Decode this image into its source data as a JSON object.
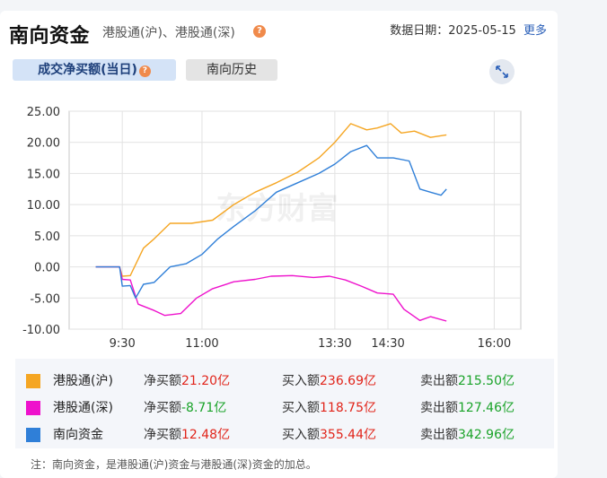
{
  "header": {
    "title": "南向资金",
    "subtitle": "港股通(沪)、港股通(深)",
    "help": "?",
    "date_label": "数据日期：",
    "date_value": "2025-05-15",
    "more": "更多"
  },
  "tabs": [
    {
      "label": "成交净买额(当日)",
      "active": true,
      "help": "?"
    },
    {
      "label": "南向历史",
      "active": false
    }
  ],
  "expand_icon": "expand-arrows-icon",
  "watermark": "东方财富",
  "chart_data": {
    "type": "line",
    "x_ticks": [
      "9:30",
      "11:00",
      "13:30",
      "14:30",
      "16:00"
    ],
    "y_ticks": [
      "25.00",
      "20.00",
      "15.00",
      "10.00",
      "5.00",
      "0.00",
      "-5.00",
      "-10.00"
    ],
    "ylim": [
      -10,
      25
    ],
    "grid": true,
    "series": [
      {
        "name": "港股通(沪)",
        "color": "#f5a623",
        "values": [
          [
            0,
            0
          ],
          [
            0.45,
            0
          ],
          [
            0.5,
            -1.5
          ],
          [
            0.65,
            -1.4
          ],
          [
            0.9,
            3
          ],
          [
            1.1,
            4.5
          ],
          [
            1.4,
            7
          ],
          [
            1.8,
            7
          ],
          [
            2.2,
            7.5
          ],
          [
            2.6,
            10
          ],
          [
            3.0,
            12
          ],
          [
            3.4,
            13.5
          ],
          [
            3.8,
            15.2
          ],
          [
            4.2,
            17.5
          ],
          [
            4.5,
            20
          ],
          [
            4.8,
            23
          ],
          [
            5.1,
            22
          ],
          [
            5.3,
            22.3
          ],
          [
            5.55,
            23
          ],
          [
            5.75,
            21.5
          ],
          [
            6.0,
            21.8
          ],
          [
            6.3,
            20.8
          ],
          [
            6.6,
            21.2
          ]
        ]
      },
      {
        "name": "港股通(深)",
        "color": "#ee11cc",
        "values": [
          [
            0,
            0
          ],
          [
            0.45,
            0
          ],
          [
            0.5,
            -2
          ],
          [
            0.65,
            -2.1
          ],
          [
            0.8,
            -6
          ],
          [
            1.1,
            -7
          ],
          [
            1.3,
            -7.8
          ],
          [
            1.6,
            -7.5
          ],
          [
            1.9,
            -5
          ],
          [
            2.2,
            -3.5
          ],
          [
            2.6,
            -2.4
          ],
          [
            3.0,
            -2
          ],
          [
            3.3,
            -1.5
          ],
          [
            3.7,
            -1.4
          ],
          [
            4.1,
            -1.7
          ],
          [
            4.4,
            -1.5
          ],
          [
            4.7,
            -2.1
          ],
          [
            5.0,
            -3.1
          ],
          [
            5.3,
            -4.2
          ],
          [
            5.6,
            -4.4
          ],
          [
            5.8,
            -6.8
          ],
          [
            6.1,
            -8.6
          ],
          [
            6.3,
            -8
          ],
          [
            6.6,
            -8.71
          ]
        ]
      },
      {
        "name": "南向资金",
        "color": "#2f7fd8",
        "values": [
          [
            0,
            0
          ],
          [
            0.45,
            0
          ],
          [
            0.5,
            -3.1
          ],
          [
            0.65,
            -3
          ],
          [
            0.75,
            -5
          ],
          [
            0.9,
            -2.8
          ],
          [
            1.1,
            -2.5
          ],
          [
            1.4,
            0
          ],
          [
            1.7,
            0.5
          ],
          [
            2.0,
            2
          ],
          [
            2.3,
            4.5
          ],
          [
            2.6,
            6.5
          ],
          [
            3.0,
            9
          ],
          [
            3.4,
            12
          ],
          [
            3.8,
            13.5
          ],
          [
            4.2,
            15
          ],
          [
            4.5,
            16.5
          ],
          [
            4.8,
            18.5
          ],
          [
            5.1,
            19.5
          ],
          [
            5.3,
            17.5
          ],
          [
            5.6,
            17.5
          ],
          [
            5.9,
            17
          ],
          [
            6.1,
            12.5
          ],
          [
            6.3,
            12
          ],
          [
            6.5,
            11.5
          ],
          [
            6.6,
            12.48
          ]
        ]
      }
    ]
  },
  "legend": [
    {
      "name": "港股通(沪)",
      "color": "#f5a623",
      "net_label": "净买额",
      "net_value": "21.20亿",
      "net_sign": "red",
      "buy_label": "买入额",
      "buy_value": "236.69亿",
      "sell_label": "卖出额",
      "sell_value": "215.50亿"
    },
    {
      "name": "港股通(深)",
      "color": "#ee11cc",
      "net_label": "净买额",
      "net_value": "-8.71亿",
      "net_sign": "green",
      "buy_label": "买入额",
      "buy_value": "118.75亿",
      "sell_label": "卖出额",
      "sell_value": "127.46亿"
    },
    {
      "name": "南向资金",
      "color": "#2f7fd8",
      "net_label": "净买额",
      "net_value": "12.48亿",
      "net_sign": "red",
      "buy_label": "买入额",
      "buy_value": "355.44亿",
      "sell_label": "卖出额",
      "sell_value": "342.96亿"
    }
  ],
  "note": "注：南向资金，是港股通(沪)资金与港股通(深)资金的加总。"
}
